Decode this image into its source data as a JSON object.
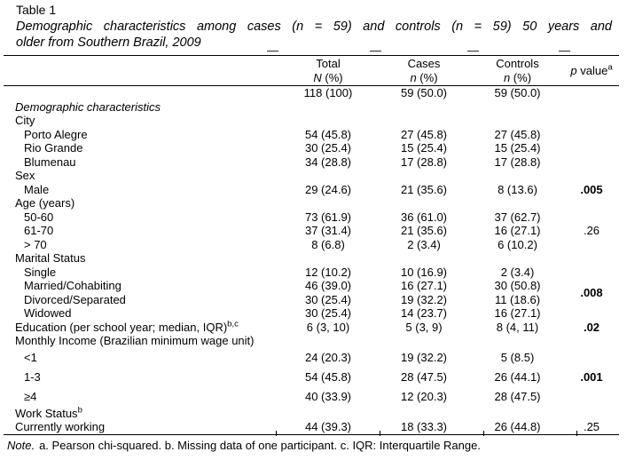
{
  "table_label": "Table 1",
  "title_line1": "Demographic characteristics among cases (n = 59) and controls (n = 59) 50 years and",
  "title_line2": "older from Southern Brazil, 2009",
  "header": {
    "total": {
      "title": "Total",
      "unit_var": "N",
      "unit_rest": " (%)"
    },
    "cases": {
      "title": "Cases",
      "unit_var": "n",
      "unit_rest": " (%)"
    },
    "controls": {
      "title": "Controls",
      "unit_var": "n",
      "unit_rest": " (%)"
    },
    "pvalue": {
      "var": "p",
      "rest": " value",
      "sup": "a"
    }
  },
  "table": {
    "rows": [
      {
        "label": "",
        "indent": false,
        "italic": false,
        "sup": "",
        "tall": false,
        "cells": [
          "118 (100)",
          "59 (50.0)",
          "59 (50.0)"
        ],
        "p": {
          "text": "",
          "bold": false,
          "span": 1
        }
      },
      {
        "label": "Demographic characteristics",
        "indent": false,
        "italic": true,
        "sup": "",
        "tall": false,
        "cells": [
          "",
          "",
          ""
        ],
        "p": {
          "text": "",
          "bold": false,
          "span": 1
        }
      },
      {
        "label": "City",
        "indent": false,
        "italic": false,
        "sup": "",
        "tall": false,
        "cells": [
          "",
          "",
          ""
        ],
        "p": {
          "text": "",
          "bold": false,
          "span": 1
        }
      },
      {
        "label": "Porto Alegre",
        "indent": true,
        "italic": false,
        "sup": "",
        "tall": false,
        "cells": [
          "54 (45.8)",
          "27 (45.8)",
          "27 (45.8)"
        ],
        "p": {
          "text": "",
          "bold": false,
          "span": 3
        }
      },
      {
        "label": "Rio Grande",
        "indent": true,
        "italic": false,
        "sup": "",
        "tall": false,
        "cells": [
          "30 (25.4)",
          "15 (25.4)",
          "15 (25.4)"
        ],
        "p": {
          "skip": true
        }
      },
      {
        "label": "Blumenau",
        "indent": true,
        "italic": false,
        "sup": "",
        "tall": false,
        "cells": [
          "34 (28.8)",
          "17 (28.8)",
          "17 (28.8)"
        ],
        "p": {
          "skip": true
        }
      },
      {
        "label": "Sex",
        "indent": false,
        "italic": false,
        "sup": "",
        "tall": false,
        "cells": [
          "",
          "",
          ""
        ],
        "p": {
          "text": "",
          "bold": false,
          "span": 1
        }
      },
      {
        "label": "Male",
        "indent": true,
        "italic": false,
        "sup": "",
        "tall": false,
        "cells": [
          "29 (24.6)",
          "21 (35.6)",
          "8 (13.6)"
        ],
        "p": {
          "text": ".005",
          "bold": true,
          "span": 1
        }
      },
      {
        "label": "Age (years)",
        "indent": false,
        "italic": false,
        "sup": "",
        "tall": false,
        "cells": [
          "",
          "",
          ""
        ],
        "p": {
          "text": "",
          "bold": false,
          "span": 1
        }
      },
      {
        "label": "50-60",
        "indent": true,
        "italic": false,
        "sup": "",
        "tall": false,
        "cells": [
          "73 (61.9)",
          "36 (61.0)",
          "37 (62.7)"
        ],
        "p": {
          "text": ".26",
          "bold": false,
          "span": 3
        }
      },
      {
        "label": "61-70",
        "indent": true,
        "italic": false,
        "sup": "",
        "tall": false,
        "cells": [
          "37 (31.4)",
          "21 (35.6)",
          "16 (27.1)"
        ],
        "p": {
          "skip": true
        }
      },
      {
        "label": "> 70",
        "indent": true,
        "italic": false,
        "sup": "",
        "tall": false,
        "cells": [
          "8 (6.8)",
          "2 (3.4)",
          "6 (10.2)"
        ],
        "p": {
          "skip": true
        }
      },
      {
        "label": "Marital Status",
        "indent": false,
        "italic": false,
        "sup": "",
        "tall": false,
        "cells": [
          "",
          "",
          ""
        ],
        "p": {
          "text": "",
          "bold": false,
          "span": 1
        }
      },
      {
        "label": "Single",
        "indent": true,
        "italic": false,
        "sup": "",
        "tall": false,
        "cells": [
          "12 (10.2)",
          "10 (16.9)",
          "2 (3.4)"
        ],
        "p": {
          "text": ".008",
          "bold": true,
          "span": 4
        }
      },
      {
        "label": "Married/Cohabiting",
        "indent": true,
        "italic": false,
        "sup": "",
        "tall": false,
        "cells": [
          "46 (39.0)",
          "16 (27.1)",
          "30 (50.8)"
        ],
        "p": {
          "skip": true
        }
      },
      {
        "label": "Divorced/Separated",
        "indent": true,
        "italic": false,
        "sup": "",
        "tall": false,
        "cells": [
          "30 (25.4)",
          "19 (32.2)",
          "11 (18.6)"
        ],
        "p": {
          "skip": true
        }
      },
      {
        "label": "Widowed",
        "indent": true,
        "italic": false,
        "sup": "",
        "tall": false,
        "cells": [
          "30 (25.4)",
          "14 (23.7)",
          "16 (27.1)"
        ],
        "p": {
          "skip": true
        }
      },
      {
        "label": "Education (per school year; median, IQR)",
        "indent": false,
        "italic": false,
        "sup": "b,c",
        "tall": false,
        "cells": [
          "6 (3, 10)",
          "5 (3, 9)",
          "8 (4, 11)"
        ],
        "p": {
          "text": ".02",
          "bold": true,
          "span": 1
        }
      },
      {
        "label": "Monthly Income (Brazilian minimum wage unit)",
        "indent": false,
        "italic": false,
        "sup": "",
        "tall": false,
        "cells": [
          "",
          "",
          ""
        ],
        "p": {
          "text": "",
          "bold": false,
          "span": 1
        }
      },
      {
        "label": "<1",
        "indent": true,
        "italic": false,
        "sup": "",
        "tall": true,
        "cells": [
          "24 (20.3)",
          "19 (32.2)",
          "5 (8.5)"
        ],
        "p": {
          "text": ".001",
          "bold": true,
          "span": 3
        }
      },
      {
        "label": "1-3",
        "indent": true,
        "italic": false,
        "sup": "",
        "tall": true,
        "cells": [
          "54 (45.8)",
          "28 (47.5)",
          "26 (44.1)"
        ],
        "p": {
          "skip": true
        }
      },
      {
        "label": "≥4",
        "indent": true,
        "italic": false,
        "sup": "",
        "tall": true,
        "cells": [
          "40 (33.9)",
          "12 (20.3)",
          "28 (47.5)"
        ],
        "p": {
          "skip": true
        }
      },
      {
        "label": "Work Status",
        "indent": false,
        "italic": false,
        "sup": "b",
        "tall": false,
        "cells": [
          "",
          "",
          ""
        ],
        "p": {
          "text": "",
          "bold": false,
          "span": 1
        }
      },
      {
        "label": "Currently working",
        "indent": false,
        "italic": false,
        "sup": "",
        "tall": false,
        "cells": [
          "44 (39.3)",
          "18 (33.3)",
          "26 (44.8)"
        ],
        "p": {
          "text": ".25",
          "bold": false,
          "span": 1
        }
      }
    ]
  },
  "note": {
    "lead": "Note.",
    "rest": "a. Pearson chi-squared. b. Missing data of one participant. c. IQR: Interquartile Range."
  }
}
